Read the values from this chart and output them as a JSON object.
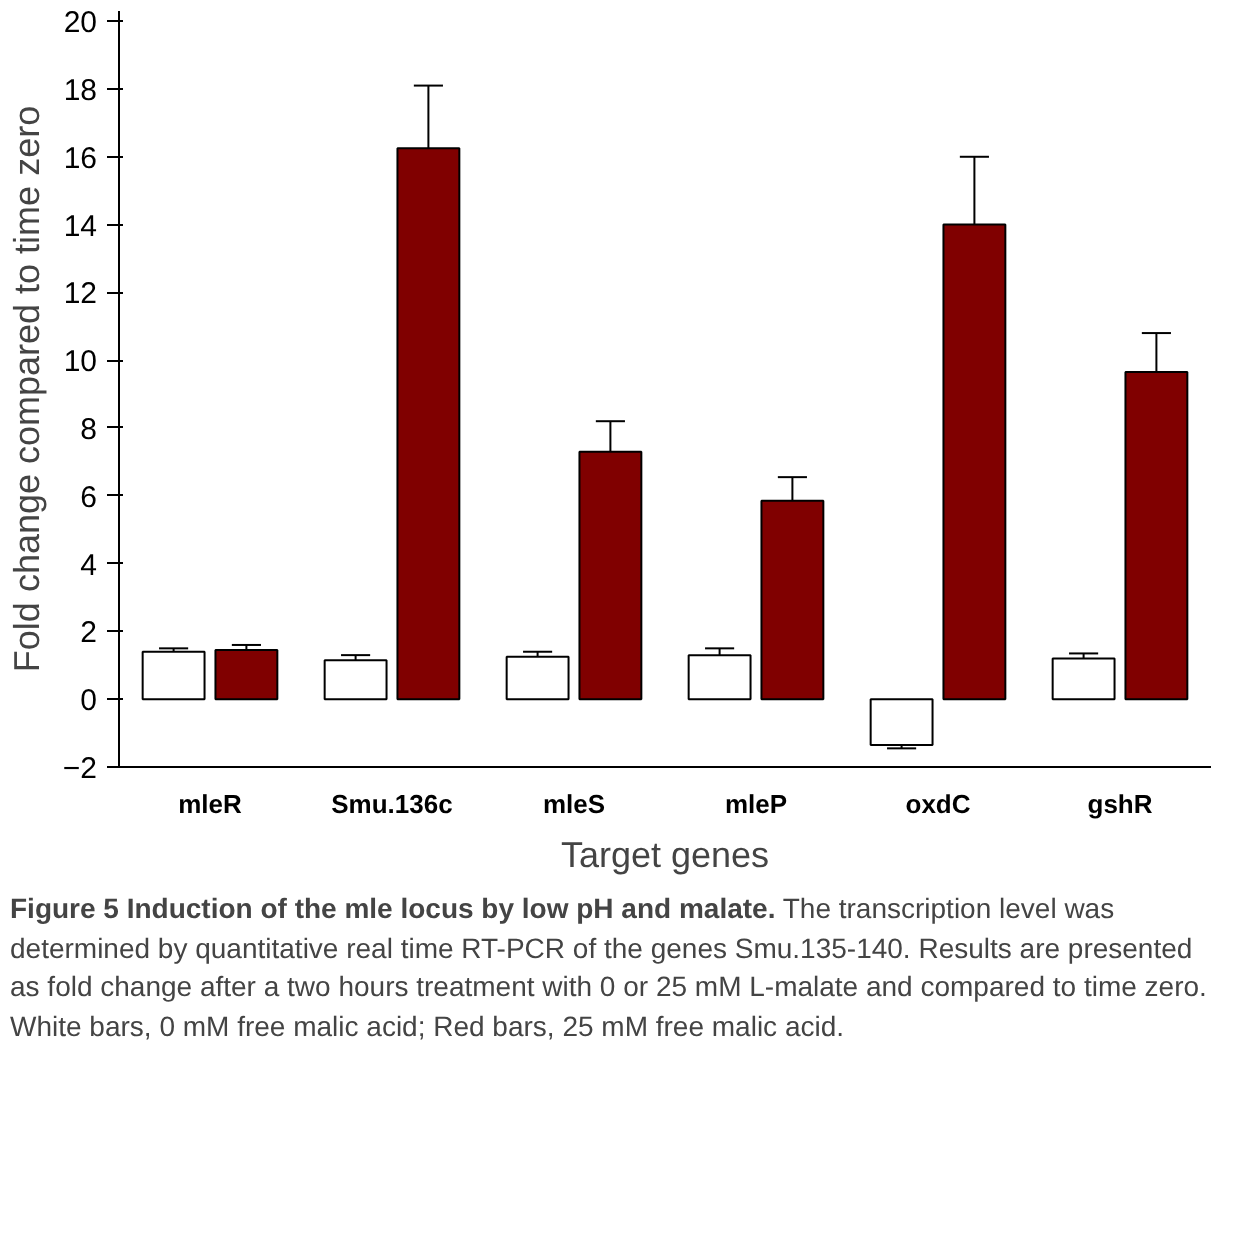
{
  "chart_data": {
    "type": "bar",
    "title": "Figure 5 Induction of the mle locus by low pH and malate.",
    "xlabel": "Target genes",
    "ylabel": "Fold change compared to time zero",
    "categories": [
      "mleR",
      "Smu.136c",
      "mleS",
      "mleP",
      "oxdC",
      "gshR"
    ],
    "series": [
      {
        "color": "#ffffff",
        "values": [
          1.4,
          1.15,
          1.25,
          1.3,
          -1.35,
          1.2
        ],
        "errors": [
          [
            1.4,
            1.5
          ],
          [
            1.15,
            1.3
          ],
          [
            1.25,
            1.4
          ],
          [
            1.3,
            1.5
          ],
          [
            -1.45,
            -1.35
          ],
          [
            1.2,
            1.35
          ]
        ]
      },
      {
        "color": "#800000",
        "values": [
          1.45,
          16.25,
          7.3,
          5.85,
          14.0,
          9.65
        ],
        "errors": [
          [
            1.45,
            1.6
          ],
          [
            16.25,
            18.1
          ],
          [
            7.3,
            8.2
          ],
          [
            5.85,
            6.55
          ],
          [
            14.0,
            16.0
          ],
          [
            9.65,
            10.8
          ]
        ]
      }
    ],
    "ylim": [
      -2,
      20.3
    ],
    "yticks": [
      -2,
      0,
      2,
      4,
      6,
      8,
      10,
      12,
      14,
      16,
      18,
      20
    ],
    "grid": false,
    "annotations": [
      "The transcription level was determined by quantitative real time RT-PCR of the genes Smu.135-140. Results are presented as fold change after a two hours treatment with 0 or 25 mM L-malate and compared to time zero. White bars, 0 mM free malic acid; Red bars, 25 mM free malic acid."
    ]
  }
}
